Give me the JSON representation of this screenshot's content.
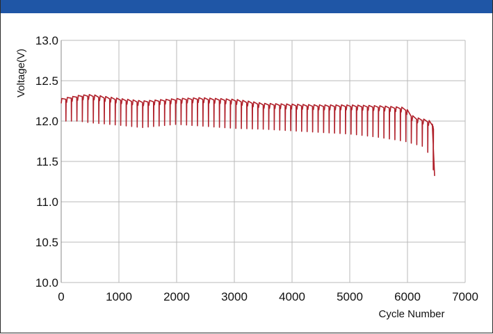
{
  "colors": {
    "header": "#1f56a6",
    "series": "#b0202a",
    "grid": "#b8b8b8"
  },
  "chart_data": {
    "type": "line",
    "title": "",
    "xlabel": "Cycle Number",
    "ylabel": "Voltage(V)",
    "xlim": [
      0,
      7000
    ],
    "ylim": [
      10.0,
      13.0
    ],
    "x_ticks": [
      0,
      1000,
      2000,
      3000,
      4000,
      5000,
      6000,
      7000
    ],
    "y_ticks": [
      10.0,
      10.5,
      11.0,
      11.5,
      12.0,
      12.5,
      13.0
    ],
    "x_tick_labels": [
      "0",
      "1000",
      "2000",
      "3000",
      "4000",
      "5000",
      "6000",
      "7000"
    ],
    "y_tick_labels": [
      "10.0",
      "10.5",
      "11.0",
      "11.5",
      "12.0",
      "12.5",
      "13.0"
    ],
    "grid": true,
    "series": [
      {
        "name": "",
        "upper_envelope": {
          "x": [
            0,
            300,
            500,
            1000,
            1400,
            2000,
            2400,
            3000,
            3500,
            4000,
            4500,
            5000,
            5500,
            5950,
            6100,
            6300,
            6400,
            6440
          ],
          "y": [
            12.28,
            12.32,
            12.33,
            12.28,
            12.25,
            12.28,
            12.29,
            12.27,
            12.22,
            12.21,
            12.2,
            12.2,
            12.19,
            12.17,
            12.05,
            12.02,
            12.0,
            11.95
          ]
        },
        "lower_envelope": {
          "x": [
            0,
            300,
            500,
            1000,
            1400,
            2000,
            2400,
            3000,
            3500,
            4000,
            4500,
            5000,
            5500,
            5950,
            6100,
            6300,
            6400,
            6470
          ],
          "y": [
            12.0,
            12.0,
            11.98,
            11.95,
            11.92,
            11.96,
            11.94,
            11.91,
            11.9,
            11.88,
            11.86,
            11.84,
            11.8,
            11.75,
            11.72,
            11.68,
            11.55,
            11.32
          ]
        }
      }
    ]
  }
}
